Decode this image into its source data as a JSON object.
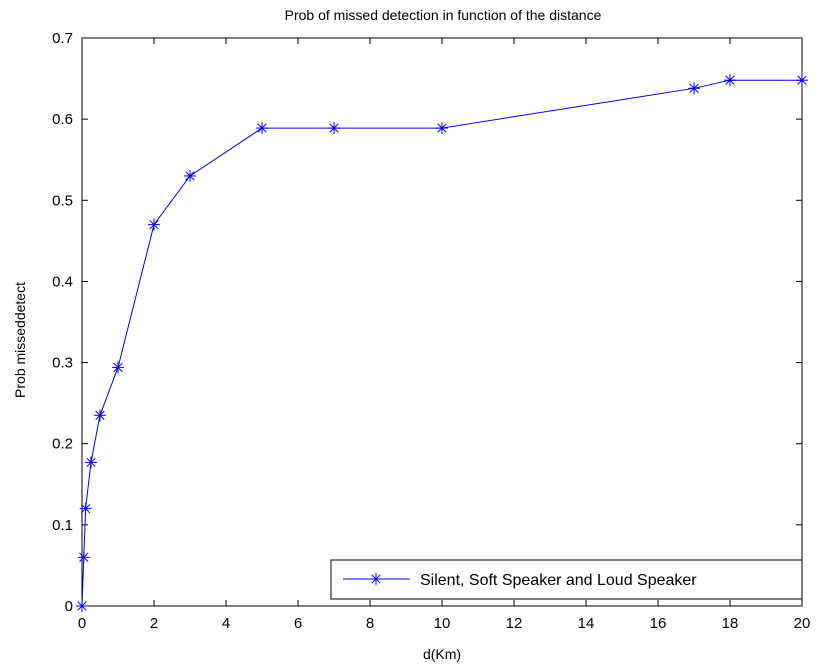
{
  "chart_data": {
    "type": "line",
    "title": "Prob of missed detection in function of the distance",
    "xlabel": "d(Km)",
    "ylabel": "Prob misseddetect",
    "xlim": [
      0,
      20
    ],
    "ylim": [
      0,
      0.7
    ],
    "xticks": [
      "0",
      "2",
      "4",
      "6",
      "8",
      "10",
      "12",
      "14",
      "16",
      "18",
      "20"
    ],
    "yticks": [
      "0",
      "0.1",
      "0.2",
      "0.3",
      "0.4",
      "0.5",
      "0.6",
      "0.7"
    ],
    "grid": false,
    "legend_position": "bottom-right",
    "series": [
      {
        "name": "Silent, Soft Speaker and Loud Speaker",
        "color": "#0000ff",
        "marker": "asterisk",
        "x": [
          0,
          0.05,
          0.1,
          0.25,
          0.5,
          1,
          2,
          3,
          5,
          7,
          10,
          17,
          18,
          20
        ],
        "y": [
          0,
          0.06,
          0.12,
          0.177,
          0.235,
          0.294,
          0.47,
          0.53,
          0.589,
          0.589,
          0.589,
          0.638,
          0.648,
          0.648
        ]
      }
    ]
  }
}
